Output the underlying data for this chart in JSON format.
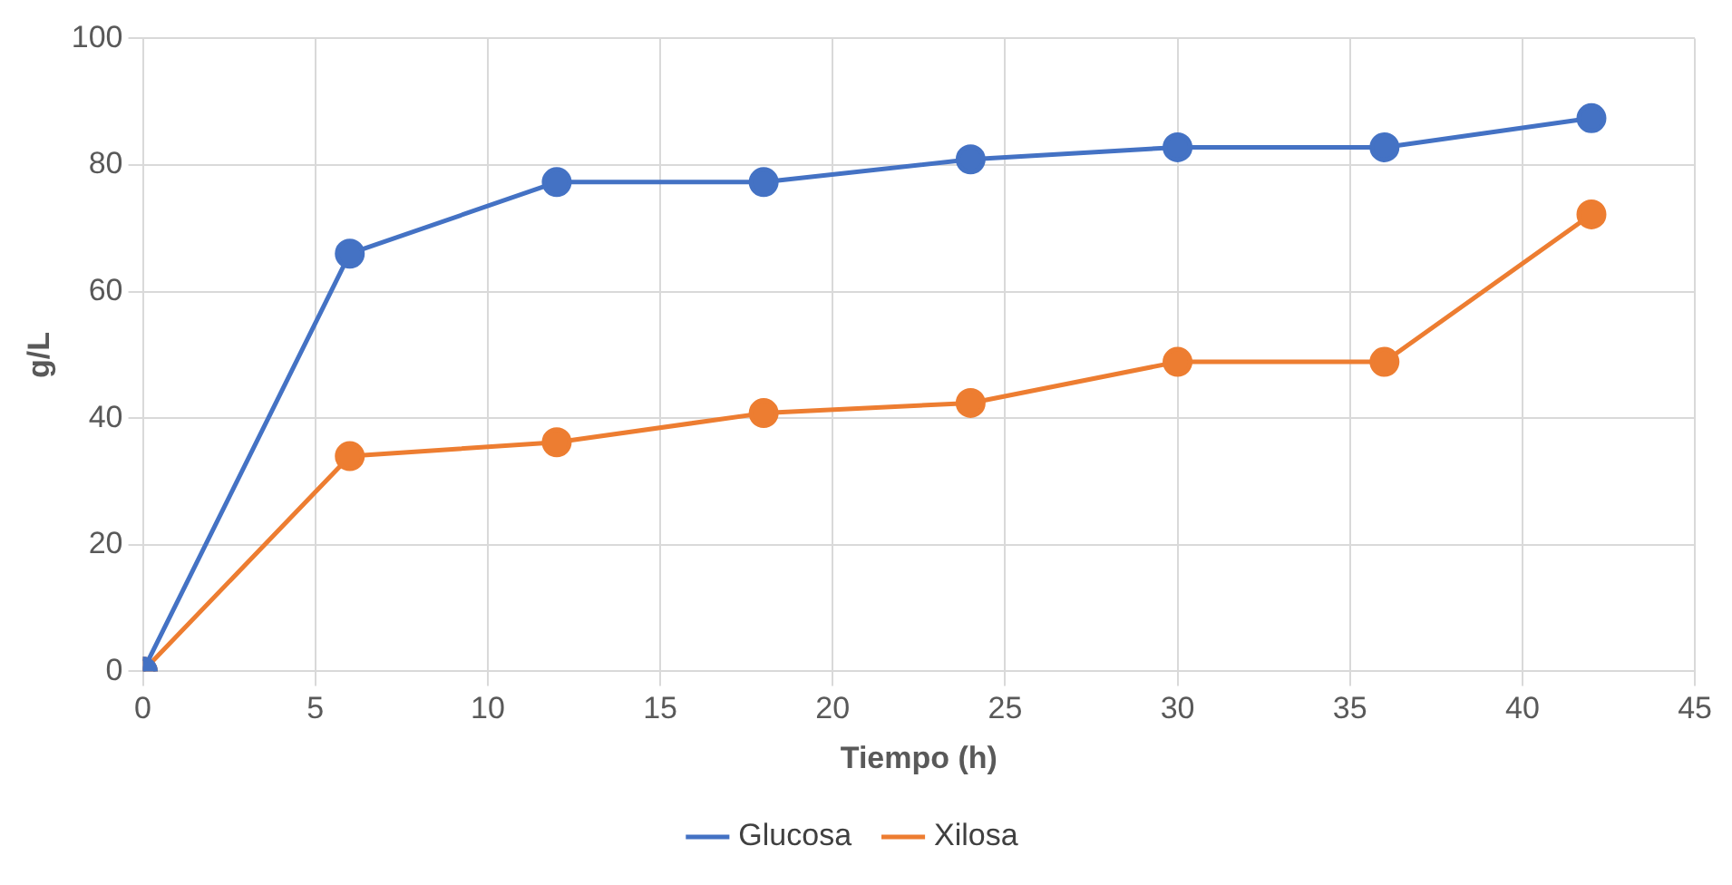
{
  "chart_data": {
    "type": "line",
    "xlabel": "Tiempo (h)",
    "ylabel": "g/L",
    "x": [
      0,
      6,
      12,
      18,
      24,
      30,
      36,
      42
    ],
    "series": [
      {
        "name": "Glucosa",
        "color": "#4472c4",
        "values": [
          0,
          66,
          77.3,
          77.3,
          80.9,
          82.8,
          82.8,
          87.4
        ]
      },
      {
        "name": "Xilosa",
        "color": "#ed7d31",
        "values": [
          0,
          34,
          36.2,
          40.8,
          42.4,
          48.9,
          48.9,
          72.2
        ]
      }
    ],
    "xlim": [
      0,
      45
    ],
    "xticks": [
      0,
      5,
      10,
      15,
      20,
      25,
      30,
      35,
      40,
      45
    ],
    "ylim": [
      0,
      100
    ],
    "yticks": [
      0,
      20,
      40,
      60,
      80,
      100
    ],
    "grid": true,
    "legend": "bottom",
    "marker": "circle",
    "line_style": "solid"
  }
}
